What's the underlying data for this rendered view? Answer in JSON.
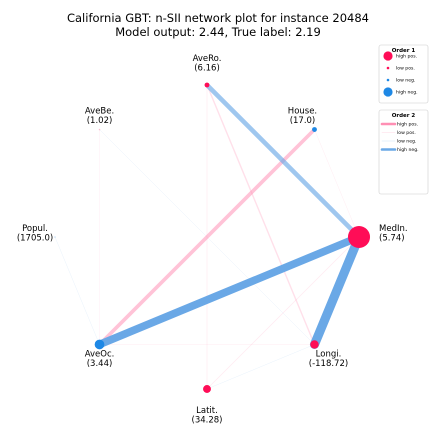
{
  "chart_data": {
    "type": "network",
    "title": "California GBT: n-SII network plot for instance 20484",
    "subtitle": "Model output: 2.44, True label: 2.19",
    "colors": {
      "positive": "#ff0d57",
      "positive_edge": "#ff8fb4",
      "negative": "#1e88e5",
      "negative_edge": "#6aa8e6"
    },
    "nodes": [
      {
        "id": "MedIn",
        "name": "MedIn.",
        "value_label": "(5.74)",
        "angle_deg": 0,
        "attribution": 0.62,
        "sign": "pos"
      },
      {
        "id": "House",
        "name": "House.",
        "value_label": "(17.0)",
        "angle_deg": 45,
        "attribution": -0.03,
        "sign": "neg"
      },
      {
        "id": "AveRo",
        "name": "AveRo.",
        "value_label": "(6.16)",
        "angle_deg": 90,
        "attribution": 0.03,
        "sign": "pos"
      },
      {
        "id": "AveBe",
        "name": "AveBe.",
        "value_label": "(1.02)",
        "angle_deg": 135,
        "attribution": 0.0,
        "sign": "pos"
      },
      {
        "id": "Popul",
        "name": "Popul.",
        "value_label": "(1705.0)",
        "angle_deg": 180,
        "attribution": 0.0,
        "sign": "neg"
      },
      {
        "id": "AveOc",
        "name": "AveOc.",
        "value_label": "(3.44)",
        "angle_deg": 225,
        "attribution": -0.12,
        "sign": "neg"
      },
      {
        "id": "Latit",
        "name": "Latit.",
        "value_label": "(34.28)",
        "angle_deg": 270,
        "attribution": 0.08,
        "sign": "pos"
      },
      {
        "id": "Longi",
        "name": "Longi.",
        "value_label": "(-118.72)",
        "angle_deg": 315,
        "attribution": 0.09,
        "sign": "pos"
      }
    ],
    "edges": [
      {
        "source": "MedIn",
        "target": "AveOc",
        "value": -0.55
      },
      {
        "source": "MedIn",
        "target": "Longi",
        "value": -0.65
      },
      {
        "source": "MedIn",
        "target": "AveRo",
        "value": -0.33
      },
      {
        "source": "House",
        "target": "AveOc",
        "value": 0.26
      },
      {
        "source": "AveRo",
        "target": "Longi",
        "value": 0.1
      },
      {
        "source": "AveRo",
        "target": "Latit",
        "value": 0.05
      },
      {
        "source": "MedIn",
        "target": "Latit",
        "value": 0.05
      },
      {
        "source": "AveOc",
        "target": "Longi",
        "value": 0.04
      },
      {
        "source": "MedIn",
        "target": "House",
        "value": 0.03
      },
      {
        "source": "AveBe",
        "target": "AveOc",
        "value": 0.02
      },
      {
        "source": "Popul",
        "target": "AveOc",
        "value": -0.02
      },
      {
        "source": "Latit",
        "target": "Longi",
        "value": -0.02
      },
      {
        "source": "AveBe",
        "target": "Longi",
        "value": -0.02
      }
    ],
    "legend": {
      "position": "top-right",
      "order1": {
        "title": "Order 1",
        "items": [
          {
            "label": "high pos.",
            "sign": "pos",
            "level": "high"
          },
          {
            "label": "low pos.",
            "sign": "pos",
            "level": "low"
          },
          {
            "label": "low neg.",
            "sign": "neg",
            "level": "low"
          },
          {
            "label": "high neg.",
            "sign": "neg",
            "level": "high"
          }
        ]
      },
      "order2": {
        "title": "Order 2",
        "items": [
          {
            "label": "high pos.",
            "sign": "pos",
            "level": "high"
          },
          {
            "label": "low pos.",
            "sign": "pos",
            "level": "low"
          },
          {
            "label": "low neg.",
            "sign": "neg",
            "level": "low"
          },
          {
            "label": "high neg.",
            "sign": "neg",
            "level": "high"
          }
        ]
      }
    }
  }
}
